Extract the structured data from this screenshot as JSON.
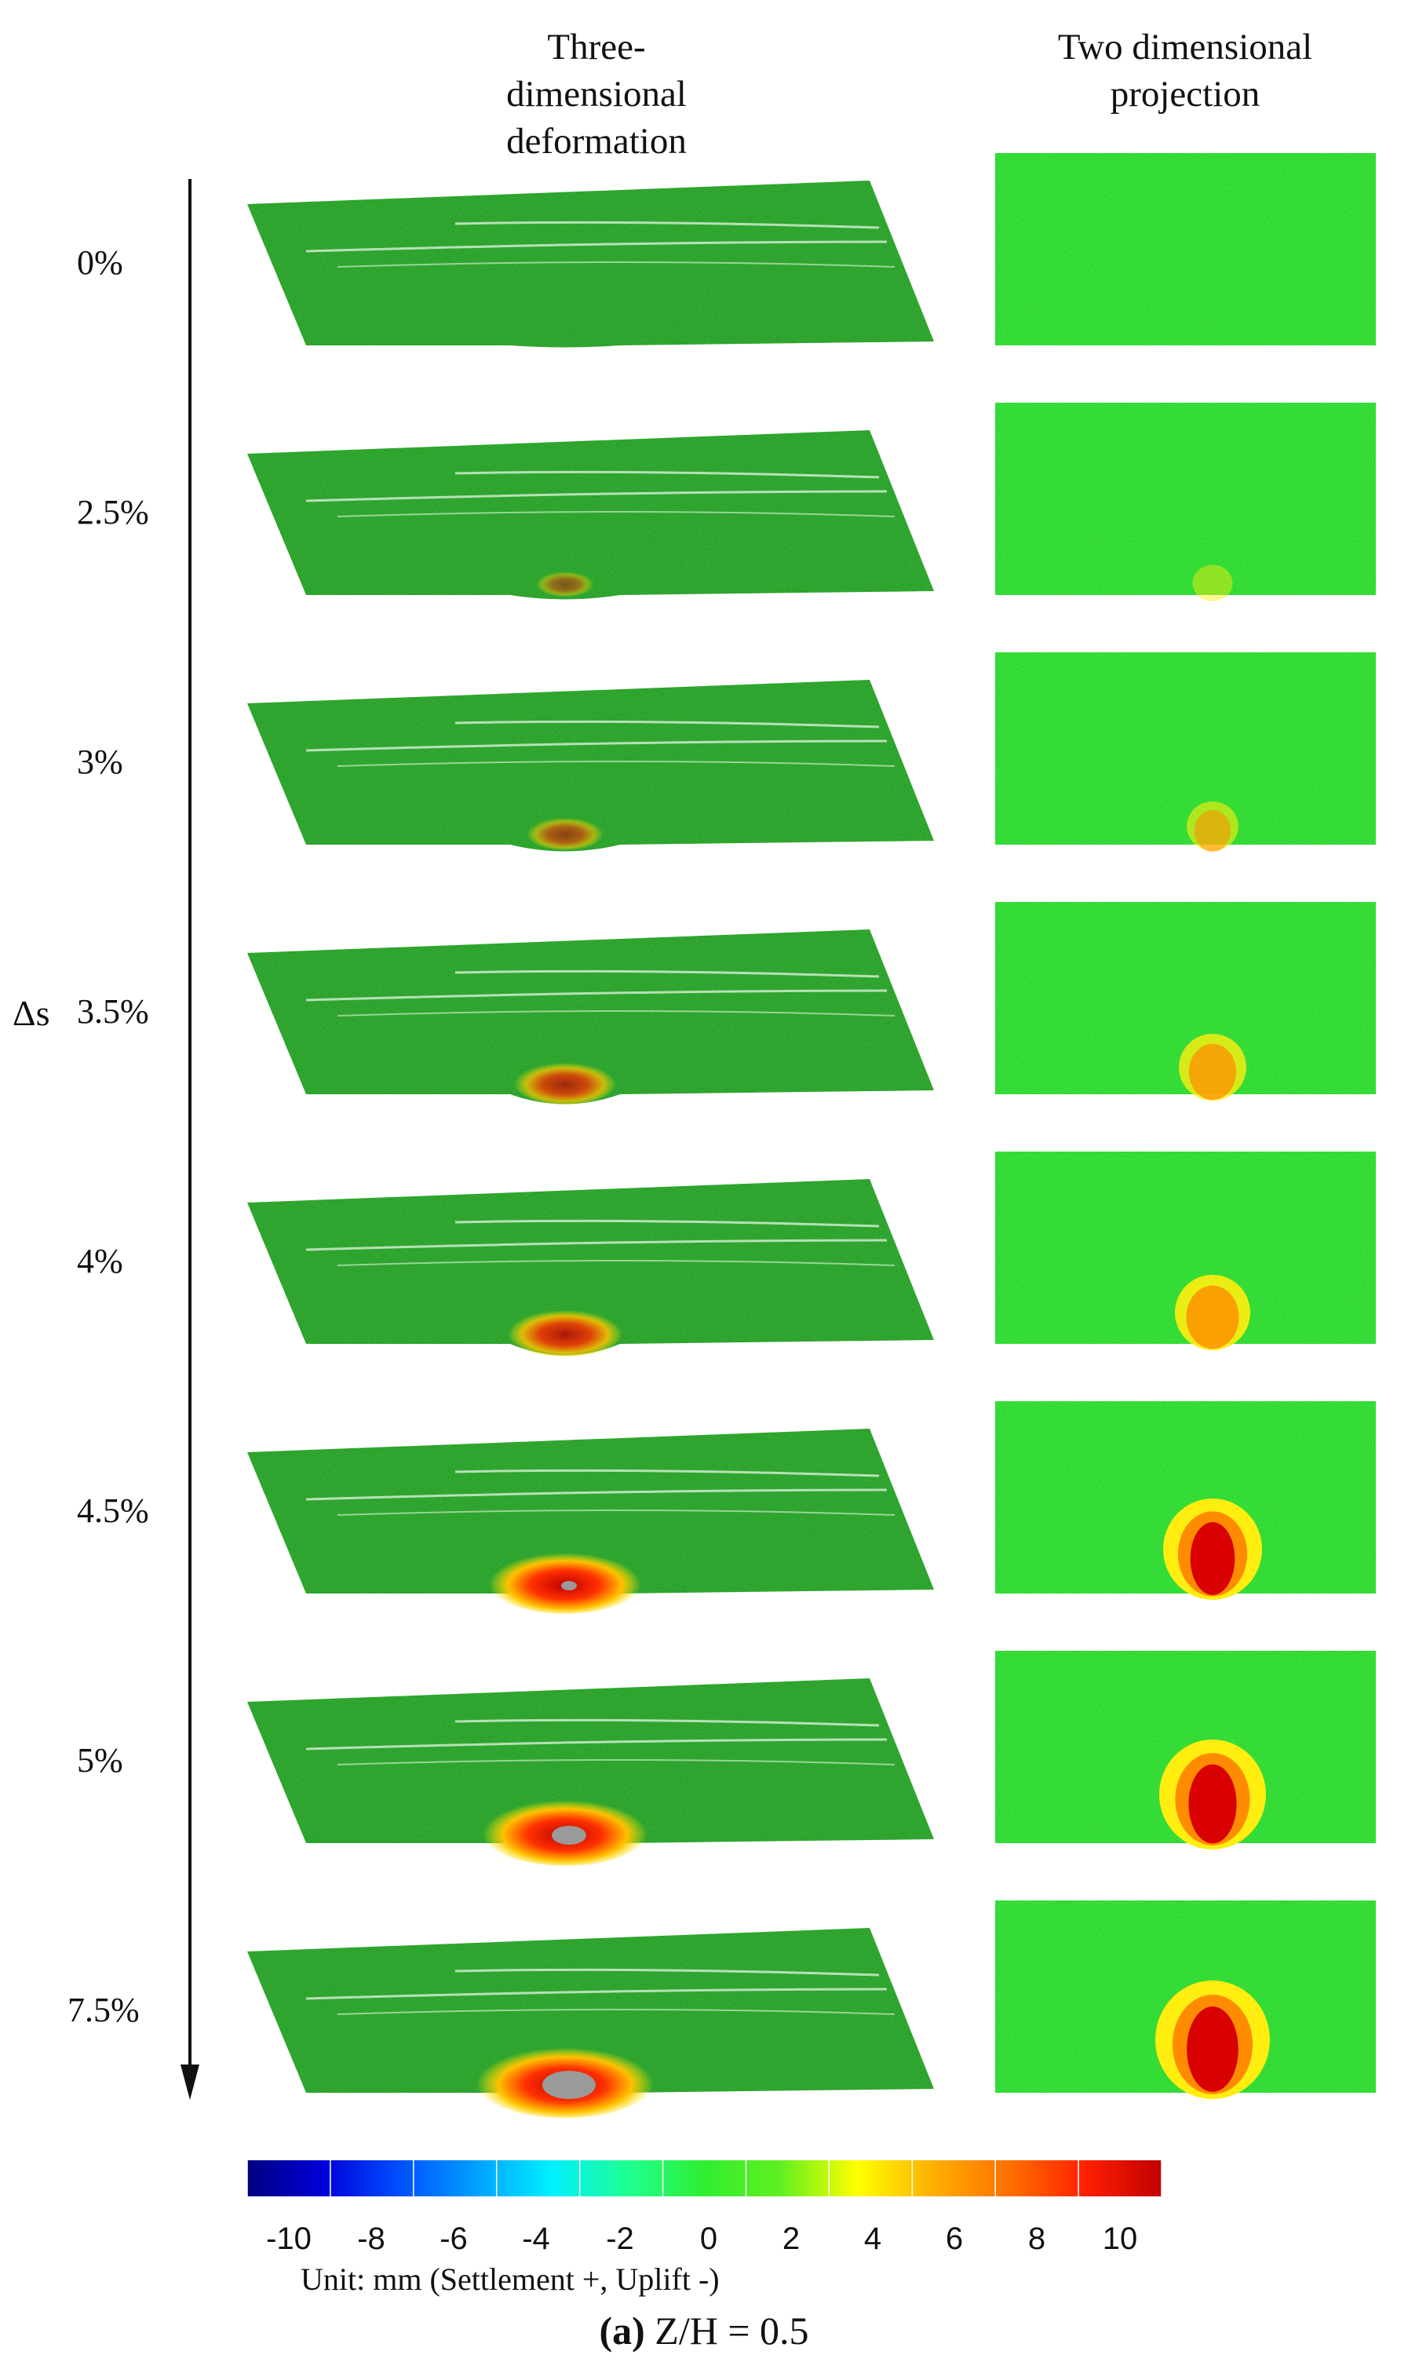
{
  "headers": {
    "three_d": [
      "Three-dimensional",
      "deformation"
    ],
    "two_d": [
      "Two dimensional",
      "projection"
    ]
  },
  "axis_label": "Δs",
  "rows": [
    {
      "label": "0%",
      "settlement_mm": 0.0
    },
    {
      "label": "2.5%",
      "settlement_mm": 1.5
    },
    {
      "label": "3%",
      "settlement_mm": 3.0
    },
    {
      "label": "3.5%",
      "settlement_mm": 5.0
    },
    {
      "label": "4%",
      "settlement_mm": 6.0
    },
    {
      "label": "4.5%",
      "settlement_mm": 9.0
    },
    {
      "label": "5%",
      "settlement_mm": 10.0
    },
    {
      "label": "7.5%",
      "settlement_mm": 11.0
    }
  ],
  "colorbar": {
    "ticks": [
      "-10",
      "-8",
      "-6",
      "-4",
      "-2",
      "0",
      "2",
      "4",
      "6",
      "8",
      "10"
    ],
    "range": [
      -11,
      11
    ],
    "colors": [
      "#000080",
      "#0000d8",
      "#0050ff",
      "#00a0ff",
      "#00f0ff",
      "#20ff90",
      "#30ee30",
      "#60f020",
      "#ffff00",
      "#ffb000",
      "#ff7000",
      "#ff2000",
      "#c00000"
    ]
  },
  "unit": "Unit: mm  (Settlement +, Uplift -)",
  "caption": {
    "bold": "(a)",
    "rest": " Z/H = 0.5"
  },
  "colors": {
    "surface": "#33b233",
    "projection": "#38e83a",
    "accent": "#cc0000"
  }
}
